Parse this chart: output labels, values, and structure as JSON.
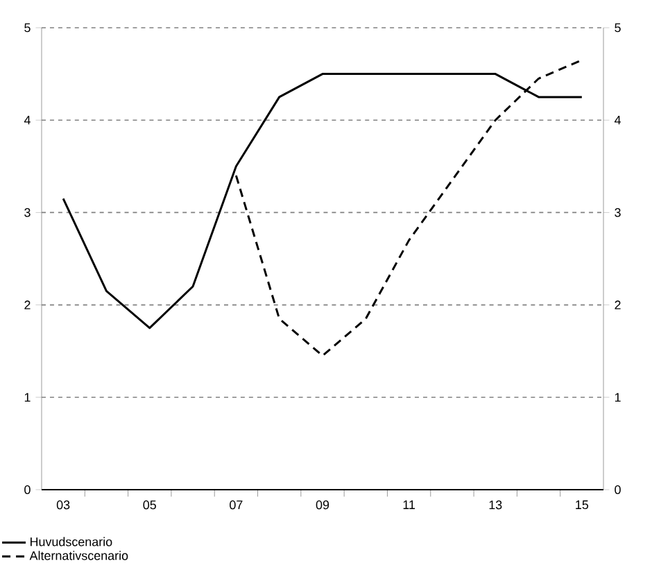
{
  "chart_data": {
    "type": "line",
    "categories": [
      "03",
      null,
      "05",
      null,
      "07",
      null,
      "09",
      null,
      "11",
      null,
      "13",
      null,
      "15"
    ],
    "series": [
      {
        "name": "Huvudscenario",
        "color": "#000000",
        "line_style": "solid",
        "values": [
          3.15,
          2.15,
          1.75,
          2.2,
          3.5,
          4.25,
          4.5,
          4.5,
          4.5,
          4.5,
          4.5,
          4.25,
          4.25
        ]
      },
      {
        "name": "Alternativscenario",
        "color": "#000000",
        "line_style": "dashed",
        "values": [
          null,
          null,
          null,
          null,
          3.4,
          1.85,
          1.45,
          1.85,
          2.7,
          3.35,
          4.0,
          4.45,
          4.65
        ]
      }
    ],
    "ylim": [
      0,
      5
    ],
    "yticks": [
      0,
      1,
      2,
      3,
      4,
      5
    ],
    "y2lim": [
      0,
      5
    ],
    "y2ticks": [
      0,
      1,
      2,
      3,
      4,
      5
    ],
    "grid": "y",
    "legend": "bottom left",
    "marker": "none"
  }
}
